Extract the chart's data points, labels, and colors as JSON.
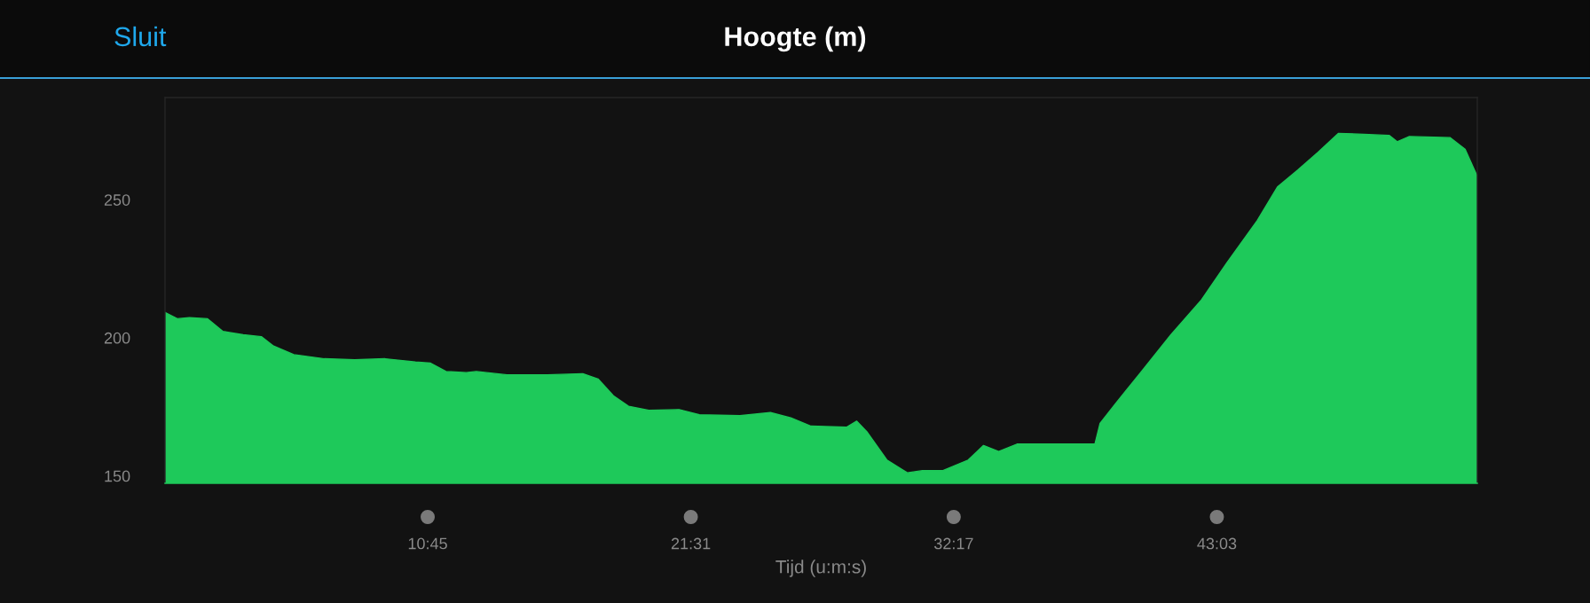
{
  "chart_data": {
    "type": "area",
    "title": "Hoogte (m)",
    "xlabel": "Tijd (u:m:s)",
    "annotations": [
      "Sluit"
    ],
    "x": [
      0,
      0.5,
      1.0,
      1.74,
      2.37,
      3.2,
      3.94,
      4.44,
      5.27,
      6.52,
      7.76,
      9.01,
      10.25,
      10.87,
      11.5,
      12.33,
      12.74,
      13.99,
      15.65,
      17.1,
      17.72,
      18.35,
      18.97,
      19.8,
      21.04,
      21.87,
      23.53,
      24.78,
      25.61,
      26.44,
      27.89,
      28.31,
      28.72,
      29.55,
      30.38,
      31.0,
      31.84,
      32.87,
      33.5,
      34.12,
      34.87,
      38.06,
      38.27,
      38.89,
      39.93,
      41.17,
      42.42,
      43.46,
      44.7,
      45.53,
      46.36,
      47.19,
      48.02,
      49.06,
      50.1,
      50.43,
      50.93,
      52.59,
      53.21,
      53.71
    ],
    "values": [
      209.2,
      206.9,
      207.3,
      206.9,
      202.3,
      201.1,
      200.4,
      197,
      193.9,
      192.4,
      192,
      192.4,
      191.2,
      190.8,
      187.8,
      187.4,
      187.8,
      186.6,
      186.6,
      187,
      185.1,
      179,
      175.2,
      173.7,
      174,
      172.1,
      171.8,
      172.9,
      171,
      168,
      167.6,
      169.8,
      166,
      155.7,
      151.1,
      151.9,
      151.9,
      155.7,
      161,
      158.8,
      161.5,
      161.5,
      169,
      176,
      187.4,
      201.1,
      213.7,
      227.1,
      242.4,
      254.6,
      260.7,
      267.2,
      274,
      273.7,
      273.3,
      271,
      272.9,
      272.5,
      268.3,
      258.4
    ],
    "color": "#1ec95a",
    "xlim": [
      0,
      53.71
    ],
    "ylim": [
      147.3,
      287
    ],
    "xticks": [
      {
        "value": 10.75,
        "label": "10:45"
      },
      {
        "value": 21.52,
        "label": "21:31"
      },
      {
        "value": 32.28,
        "label": "32:17"
      },
      {
        "value": 43.05,
        "label": "43:03"
      }
    ],
    "yticks": [
      150,
      200,
      250
    ],
    "grid": false
  }
}
